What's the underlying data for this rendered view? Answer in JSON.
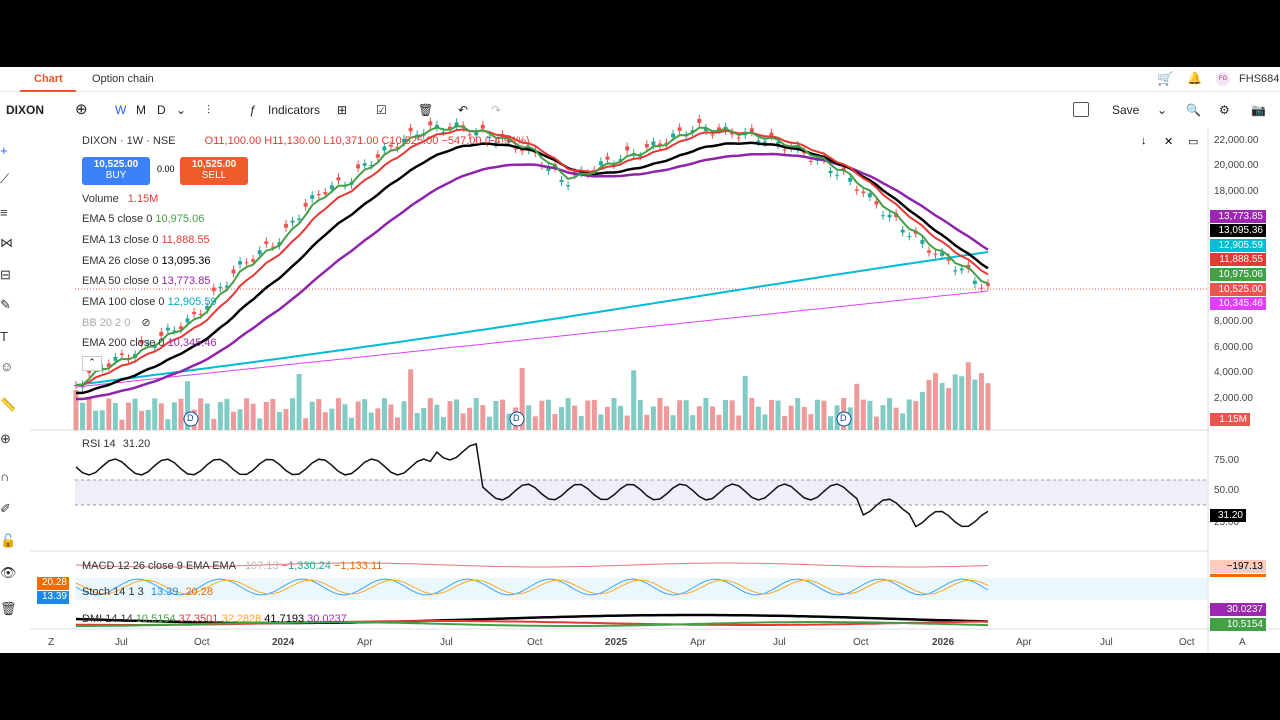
{
  "tabs": {
    "chart": "Chart",
    "option_chain": "Option chain"
  },
  "header": {
    "user": "FHS684",
    "avatar": "FG",
    "cart_icon": "cart-icon",
    "bell_icon": "bell-icon"
  },
  "toolbar": {
    "symbol": "DIXON",
    "intervals": [
      "W",
      "M",
      "D"
    ],
    "indicators_label": "Indicators",
    "save_label": "Save"
  },
  "legend": {
    "title": "DIXON · 1W · NSE",
    "ohlc": "O11,100.00  H11,130.00  L10,371.00  C10,525.00  −547.00 (−4.94%)",
    "buy_price": "10,525.00",
    "buy_label": "BUY",
    "spread": "0.00",
    "sell_price": "10,525.00",
    "sell_label": "SELL",
    "volume_label": "Volume",
    "volume_value": "1.15M",
    "ema5_label": "EMA 5 close 0",
    "ema5_value": "10,975.06",
    "ema13_label": "EMA 13 close 0",
    "ema13_value": "11,888.55",
    "ema26_label": "EMA 26 close 0",
    "ema26_value": "13,095.36",
    "ema50_label": "EMA 50 close 0",
    "ema50_value": "13,773.85",
    "ema100_label": "EMA 100 close 0",
    "ema100_value": "12,905.59",
    "bb_label": "BB 20 2 0",
    "ema200_label": "EMA 200 close 0",
    "ema200_value": "10,345.46"
  },
  "rsi": {
    "label": "RSI 14",
    "value": "31.20"
  },
  "macd": {
    "label": "MACD 12 26 close 9 EMA EMA",
    "v1": "−197.13",
    "v2": "−1,330.24",
    "v3": "−1,133.11"
  },
  "stoch": {
    "label": "Stoch 14 1 3",
    "v1": "13.39",
    "v2": "20.28"
  },
  "dmi": {
    "label": "DMI 14 14",
    "v1": "10.5154",
    "v2": "37.3501",
    "v3": "32.2828",
    "v4": "41.7193",
    "v5": "30.0237"
  },
  "y_axis": [
    "22,000.00",
    "20,000.00",
    "18,000.00",
    "8,000.00",
    "6,000.00",
    "4,000.00",
    "2,000.00"
  ],
  "rsi_axis": [
    "75.00",
    "50.00",
    "25.00"
  ],
  "price_tags": [
    {
      "value": "13,773.85",
      "color": "#9c27b0"
    },
    {
      "value": "13,095.36",
      "color": "#000000"
    },
    {
      "value": "12,905.59",
      "color": "#00bcd4"
    },
    {
      "value": "11,888.55",
      "color": "#e53935"
    },
    {
      "value": "10,975.06",
      "color": "#43a047"
    },
    {
      "value": "10,525.00",
      "color": "#ef5350"
    },
    {
      "value": "10,345.46",
      "color": "#e040fb"
    }
  ],
  "volume_tag": "1.15M",
  "rsi_tag": "31.20",
  "macd_tag": "−197.13",
  "stoch_tags": [
    "20.28",
    "13.39"
  ],
  "dmi_tags": [
    "30.0237",
    "10.5154"
  ],
  "x_axis": [
    "Jul",
    "Oct",
    "2024",
    "Apr",
    "Jul",
    "Oct",
    "2025",
    "Apr",
    "Jul",
    "Oct",
    "2026",
    "Apr",
    "Jul",
    "Oct"
  ],
  "x_axis_edge": [
    "Z",
    "A"
  ],
  "dividend_marker": "D"
}
